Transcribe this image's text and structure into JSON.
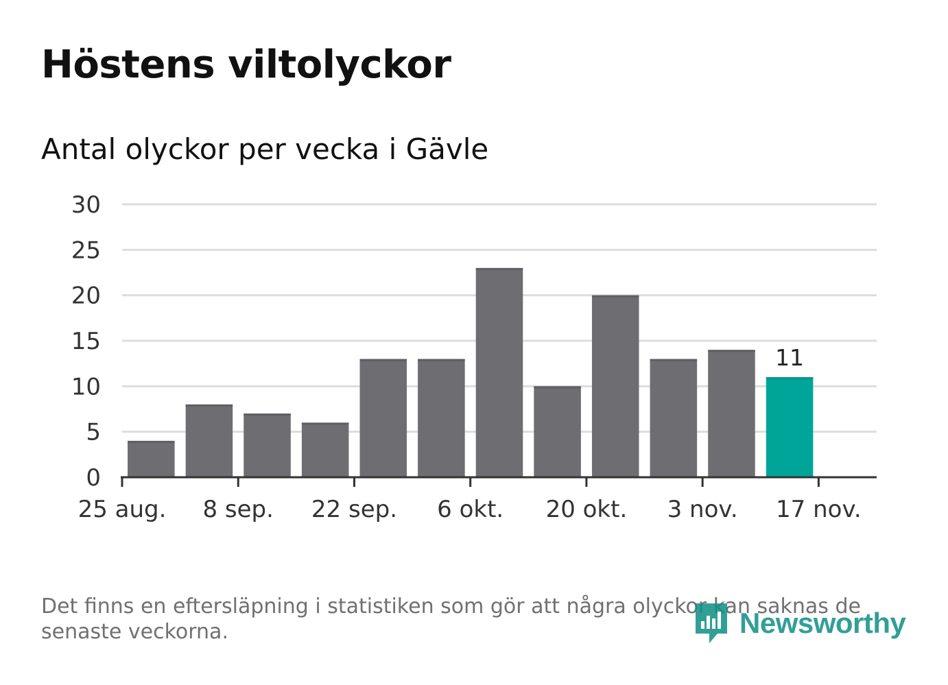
{
  "title": "Höstens viltolyckor",
  "subtitle": "Antal olyckor per vecka i Gävle",
  "footnote": "Det finns en eftersläpning i statistiken som gör att några olyckor kan saknas de senaste veckorna.",
  "brand": {
    "name": "Newsworthy",
    "color": "#0f8f86",
    "icon": "newsworthy-logo-icon"
  },
  "colors": {
    "bar": "#6e6d72",
    "highlight": "#00a59a",
    "grid": "#dddddd",
    "axis": "#333333"
  },
  "chart_data": {
    "type": "bar",
    "title": "",
    "xlabel": "",
    "ylabel": "",
    "x": [
      "2019-09-01",
      "2019-09-08",
      "2019-09-15",
      "2019-09-22",
      "2019-09-29",
      "2019-10-06",
      "2019-10-13",
      "2019-10-20",
      "2019-10-27",
      "2019-11-03",
      "2019-11-10",
      "2019-11-17"
    ],
    "values": [
      4,
      8,
      7,
      6,
      13,
      13,
      23,
      10,
      20,
      13,
      14,
      11
    ],
    "highlight_last": true,
    "data_labels": [
      {
        "x": "2019-11-17",
        "value": 11,
        "label": "11"
      }
    ],
    "x_ticks": [
      {
        "x": "2019-08-25",
        "label": "25 aug."
      },
      {
        "x": "2019-09-08",
        "label": "8 sep."
      },
      {
        "x": "2019-09-22",
        "label": "22 sep."
      },
      {
        "x": "2019-10-06",
        "label": "6 okt."
      },
      {
        "x": "2019-10-20",
        "label": "20 okt."
      },
      {
        "x": "2019-11-03",
        "label": "3 nov."
      },
      {
        "x": "2019-11-17",
        "label": "17 nov."
      }
    ],
    "xlim": [
      "2019-08-25",
      "2019-11-24"
    ],
    "ylim": [
      0,
      30
    ],
    "y_ticks": [
      0,
      5,
      10,
      15,
      20,
      25,
      30
    ],
    "grid": true,
    "legend": false
  }
}
